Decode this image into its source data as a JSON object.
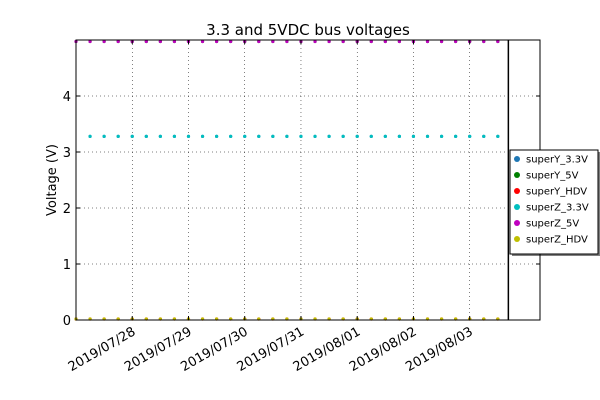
{
  "chart_data": {
    "type": "scatter",
    "title": "3.3 and 5VDC bus voltages",
    "xlabel": "",
    "ylabel": "Voltage (V)",
    "x_type": "date",
    "xlim": [
      "2019-07-27T00:00",
      "2019-08-04T06:00"
    ],
    "ylim": [
      0,
      5
    ],
    "x_ticks": [
      "2019/07/28",
      "2019/07/29",
      "2019/07/30",
      "2019/07/31",
      "2019/08/01",
      "2019/08/02",
      "2019/08/03"
    ],
    "y_ticks": [
      0,
      1,
      2,
      3,
      4
    ],
    "grid": true,
    "legend_position": "right",
    "vline": "2019-08-03T16:30",
    "x": [
      "2019-07-27T00:00",
      "2019-07-27T06:00",
      "2019-07-27T12:00",
      "2019-07-27T18:00",
      "2019-07-28T00:00",
      "2019-07-28T06:00",
      "2019-07-28T12:00",
      "2019-07-28T18:00",
      "2019-07-29T00:00",
      "2019-07-29T06:00",
      "2019-07-29T12:00",
      "2019-07-29T18:00",
      "2019-07-30T00:00",
      "2019-07-30T06:00",
      "2019-07-30T12:00",
      "2019-07-30T18:00",
      "2019-07-31T00:00",
      "2019-07-31T06:00",
      "2019-07-31T12:00",
      "2019-07-31T18:00",
      "2019-08-01T00:00",
      "2019-08-01T06:00",
      "2019-08-01T12:00",
      "2019-08-01T18:00",
      "2019-08-02T00:00",
      "2019-08-02T06:00",
      "2019-08-02T12:00",
      "2019-08-02T18:00",
      "2019-08-03T00:00",
      "2019-08-03T06:00",
      "2019-08-03T12:00"
    ],
    "series": [
      {
        "name": "superY_3.3V",
        "color": "#1f77b4",
        "marker": "circle",
        "values": [
          null,
          3.28,
          3.28,
          3.28,
          3.28,
          3.28,
          3.28,
          3.28,
          3.28,
          3.28,
          3.28,
          3.28,
          3.28,
          3.28,
          3.28,
          3.28,
          3.28,
          3.28,
          3.28,
          3.28,
          3.28,
          3.28,
          3.28,
          3.28,
          3.28,
          3.28,
          3.28,
          3.28,
          3.28,
          3.28,
          3.28
        ]
      },
      {
        "name": "superY_5V",
        "color": "#008000",
        "marker": "circle",
        "values": [
          4.99,
          4.99,
          4.99,
          4.99,
          4.99,
          4.99,
          4.99,
          4.99,
          4.99,
          4.99,
          4.99,
          4.99,
          4.99,
          4.99,
          4.99,
          4.99,
          4.99,
          4.99,
          4.99,
          4.99,
          4.99,
          4.99,
          4.99,
          4.99,
          4.99,
          4.99,
          4.99,
          4.99,
          4.99,
          4.99,
          4.99
        ]
      },
      {
        "name": "superY_HDV",
        "color": "#ff0000",
        "marker": "circle",
        "values": [
          0,
          0,
          0,
          0,
          0,
          0,
          0,
          0,
          0,
          0,
          0,
          0,
          0,
          0,
          0,
          0,
          0,
          0,
          0,
          0,
          0,
          0,
          0,
          0,
          0,
          0,
          0,
          0,
          0,
          0,
          0
        ]
      },
      {
        "name": "superZ_3.3V",
        "color": "#00bfbf",
        "marker": "circle",
        "values": [
          null,
          3.28,
          3.28,
          3.28,
          3.28,
          3.28,
          3.28,
          3.28,
          3.28,
          3.28,
          3.28,
          3.28,
          3.28,
          3.28,
          3.28,
          3.28,
          3.28,
          3.28,
          3.28,
          3.28,
          3.28,
          3.28,
          3.28,
          3.28,
          3.28,
          3.28,
          3.28,
          3.28,
          3.28,
          3.28,
          3.28
        ]
      },
      {
        "name": "superZ_5V",
        "color": "#bf00bf",
        "marker": "circle",
        "values": [
          4.99,
          4.99,
          4.99,
          4.99,
          4.99,
          4.99,
          4.99,
          4.99,
          4.99,
          4.99,
          4.99,
          4.99,
          4.99,
          4.99,
          4.99,
          4.99,
          4.99,
          4.99,
          4.99,
          4.99,
          4.99,
          4.99,
          4.99,
          4.99,
          4.99,
          4.99,
          4.99,
          4.99,
          4.99,
          4.99,
          4.99
        ]
      },
      {
        "name": "superZ_HDV",
        "color": "#bfbf00",
        "marker": "circle",
        "values": [
          0,
          0,
          0,
          0,
          0,
          0,
          0,
          0,
          0,
          0,
          0,
          0,
          0,
          0,
          0,
          0,
          0,
          0,
          0,
          0,
          0,
          0,
          0,
          0,
          0,
          0,
          0,
          0,
          0,
          0,
          0
        ]
      }
    ]
  }
}
